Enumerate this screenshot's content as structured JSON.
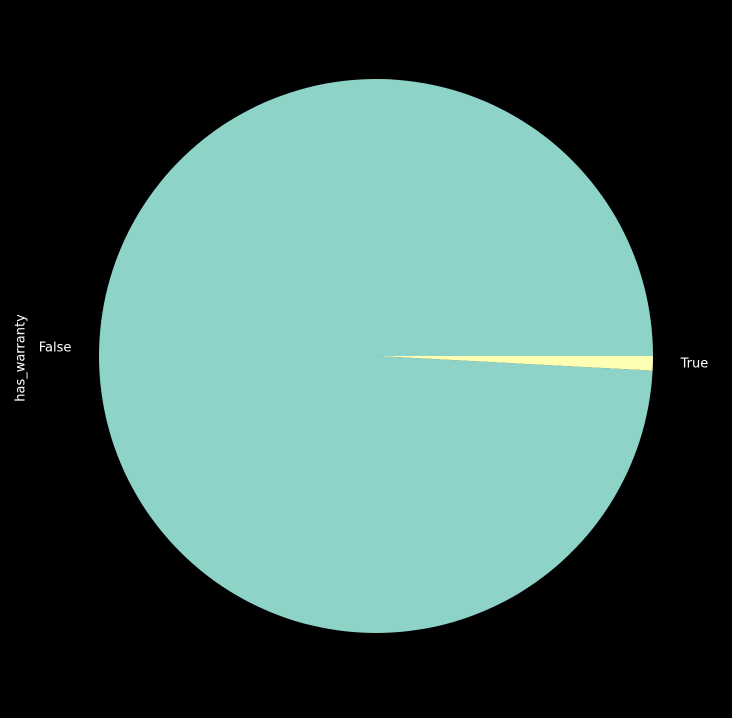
{
  "chart_data": {
    "type": "pie",
    "title": "",
    "ylabel": "has_warranty",
    "labels": [
      "False",
      "True"
    ],
    "values": [
      99.16,
      0.84
    ],
    "colors": [
      "#8dd3c7",
      "#ffffb3"
    ],
    "start_angle_degrees": 0,
    "direction": "counterclockwise",
    "background": "#000000",
    "text_color": "#ffffff",
    "legend": "none"
  }
}
